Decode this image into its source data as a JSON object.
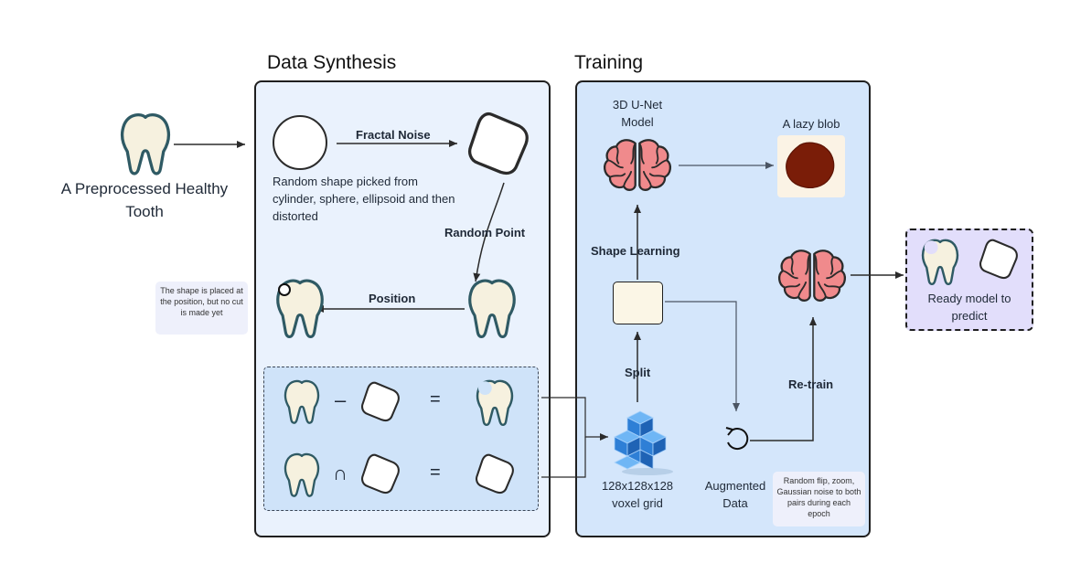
{
  "sections": {
    "synthesis_title": "Data Synthesis",
    "training_title": "Training"
  },
  "input": {
    "label_line1": "A Preprocessed Healthy",
    "label_line2": "Tooth"
  },
  "synthesis": {
    "fractal_noise": "Fractal Noise",
    "random_shape_line1": "Random shape picked from",
    "random_shape_line2": "cylinder, sphere, ellipsoid and then",
    "random_shape_line3": "distorted",
    "random_point": "Random Point",
    "position": "Position",
    "note_line1": "The shape is placed at",
    "note_line2": "the position, but no cut",
    "note_line3": "is made yet",
    "minus_op": "–",
    "intersect_op": "∩",
    "equals_op": "="
  },
  "training": {
    "unet_line1": "3D U-Net",
    "unet_line2": "Model",
    "lazy_blob": "A lazy blob",
    "shape_learning": "Shape Learning",
    "split": "Split",
    "re_train": "Re-train",
    "voxel_line1": "128x128x128",
    "voxel_line2": "voxel grid",
    "augmented_line1": "Augmented",
    "augmented_line2": "Data",
    "aug_note_line1": "Random flip, zoom,",
    "aug_note_line2": "Gaussian noise to both",
    "aug_note_line3": "pairs during each",
    "aug_note_line4": "epoch"
  },
  "output": {
    "ready_line1": "Ready model to",
    "ready_line2": "predict"
  },
  "colors": {
    "tooth_fill": "#f6f1df",
    "tooth_stroke": "#2f5a64",
    "brain_fill": "#f08a8c",
    "brain_stroke": "#2b2b2b",
    "blob": "#7a1d08",
    "voxel": "#2e7fd6"
  }
}
